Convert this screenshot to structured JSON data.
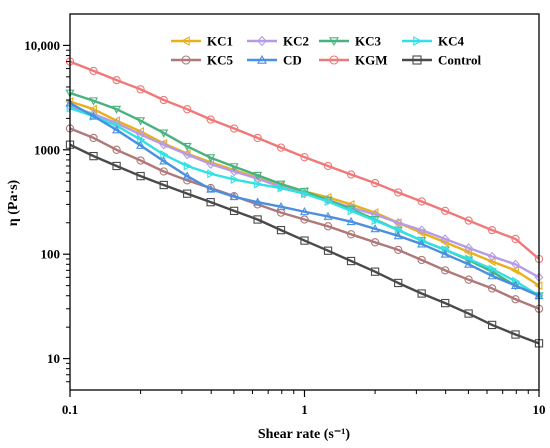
{
  "chart_data": {
    "type": "line",
    "xlabel": "Shear rate (s⁻¹)",
    "ylabel": "η (Pa·s)",
    "x_scale": "log",
    "y_scale": "log",
    "xlim": [
      0.1,
      10
    ],
    "ylim": [
      5,
      20000
    ],
    "x_ticks": [
      {
        "value": 0.1,
        "label": "0.1"
      },
      {
        "value": 1,
        "label": "1"
      },
      {
        "value": 10,
        "label": "10"
      }
    ],
    "y_ticks": [
      {
        "value": 10,
        "label": "10"
      },
      {
        "value": 100,
        "label": "100"
      },
      {
        "value": 1000,
        "label": "1000"
      },
      {
        "value": 10000,
        "label": "10,000"
      }
    ],
    "grid": false,
    "legend_position": "top-center",
    "x": [
      0.1,
      0.126,
      0.158,
      0.2,
      0.251,
      0.316,
      0.398,
      0.501,
      0.631,
      0.794,
      1,
      1.26,
      1.58,
      2,
      2.51,
      3.16,
      3.98,
      5.01,
      6.31,
      7.94,
      10
    ],
    "series": [
      {
        "name": "KC1",
        "color": "#E8B11C",
        "marker": "triangle-left",
        "values": [
          2900,
          2450,
          1900,
          1500,
          1150,
          920,
          760,
          640,
          540,
          460,
          400,
          350,
          300,
          250,
          200,
          160,
          130,
          105,
          85,
          70,
          50
        ]
      },
      {
        "name": "KC2",
        "color": "#B79BE6",
        "marker": "diamond",
        "values": [
          2600,
          2200,
          1800,
          1400,
          1120,
          900,
          730,
          620,
          530,
          440,
          380,
          330,
          280,
          240,
          200,
          170,
          140,
          115,
          95,
          80,
          60
        ]
      },
      {
        "name": "KC3",
        "color": "#49B27E",
        "marker": "triangle-down",
        "values": [
          3500,
          2950,
          2450,
          1900,
          1450,
          1080,
          840,
          690,
          570,
          470,
          400,
          330,
          270,
          215,
          170,
          135,
          110,
          88,
          68,
          50,
          40
        ]
      },
      {
        "name": "KC4",
        "color": "#33E0E3",
        "marker": "triangle-right",
        "values": [
          2500,
          2100,
          1700,
          1250,
          900,
          700,
          590,
          520,
          470,
          430,
          380,
          320,
          260,
          210,
          170,
          135,
          110,
          90,
          72,
          55,
          40
        ]
      },
      {
        "name": "KC5",
        "color": "#B07878",
        "marker": "circle",
        "values": [
          1600,
          1300,
          1000,
          790,
          620,
          510,
          430,
          360,
          300,
          250,
          215,
          185,
          155,
          130,
          110,
          88,
          70,
          57,
          47,
          37,
          30
        ]
      },
      {
        "name": "CD",
        "color": "#4A8FE0",
        "marker": "triangle-up",
        "values": [
          2800,
          2100,
          1550,
          1100,
          780,
          560,
          420,
          355,
          315,
          285,
          255,
          230,
          205,
          175,
          150,
          125,
          100,
          80,
          62,
          50,
          40
        ]
      },
      {
        "name": "KGM",
        "color": "#F07878",
        "marker": "circle",
        "values": [
          7000,
          5700,
          4650,
          3800,
          3000,
          2450,
          1950,
          1600,
          1300,
          1050,
          850,
          700,
          580,
          480,
          390,
          320,
          260,
          210,
          170,
          140,
          90
        ]
      },
      {
        "name": "Control",
        "color": "#4A4A4A",
        "marker": "square",
        "values": [
          1120,
          870,
          700,
          560,
          460,
          380,
          315,
          260,
          215,
          170,
          135,
          108,
          86,
          68,
          53,
          42,
          34,
          27,
          21,
          17,
          14
        ]
      }
    ]
  }
}
